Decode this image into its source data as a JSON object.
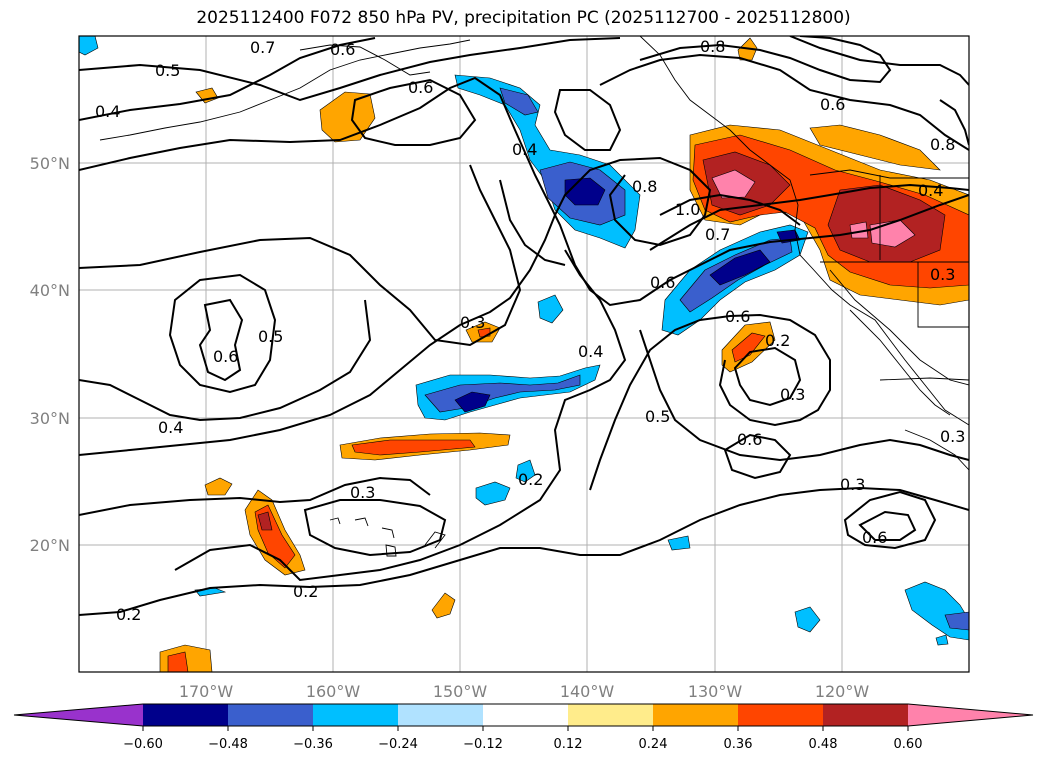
{
  "title": "2025112400 F072 850 hPa PV, precipitation PC (2025112700 - 2025112800)",
  "lat_ticks": [
    "50°N",
    "40°N",
    "30°N",
    "20°N"
  ],
  "lon_ticks": [
    "170°W",
    "160°W",
    "150°W",
    "140°W",
    "130°W",
    "120°W"
  ],
  "map_extent": {
    "lon": [
      -180,
      -110
    ],
    "lat": [
      10,
      60
    ]
  },
  "contour_labels": [
    "0.7",
    "0.6",
    "0.8",
    "0.5",
    "0.4",
    "0.6",
    "0.6",
    "0.8",
    "0.4",
    "0.8",
    "1.0",
    "0.7",
    "0.4",
    "0.6",
    "0.3",
    "0.4",
    "0.6",
    "0.2",
    "0.5",
    "0.6",
    "0.3",
    "0.5",
    "0.6",
    "0.4",
    "0.3",
    "0.2",
    "0.3",
    "0.2",
    "0.2",
    "0.6",
    "0.3",
    "0.3"
  ],
  "colorbar": {
    "levels": [
      "−0.60",
      "−0.48",
      "−0.36",
      "−0.24",
      "−0.12",
      "0.12",
      "0.24",
      "0.36",
      "0.48",
      "0.60"
    ],
    "colors": [
      "#9932cc",
      "#00008b",
      "#3a5fcd",
      "#00bfff",
      "#b0e2ff",
      "#ffffff",
      "#ffec8b",
      "#ffa500",
      "#ff4500",
      "#b22222",
      "#ff82ab"
    ]
  }
}
